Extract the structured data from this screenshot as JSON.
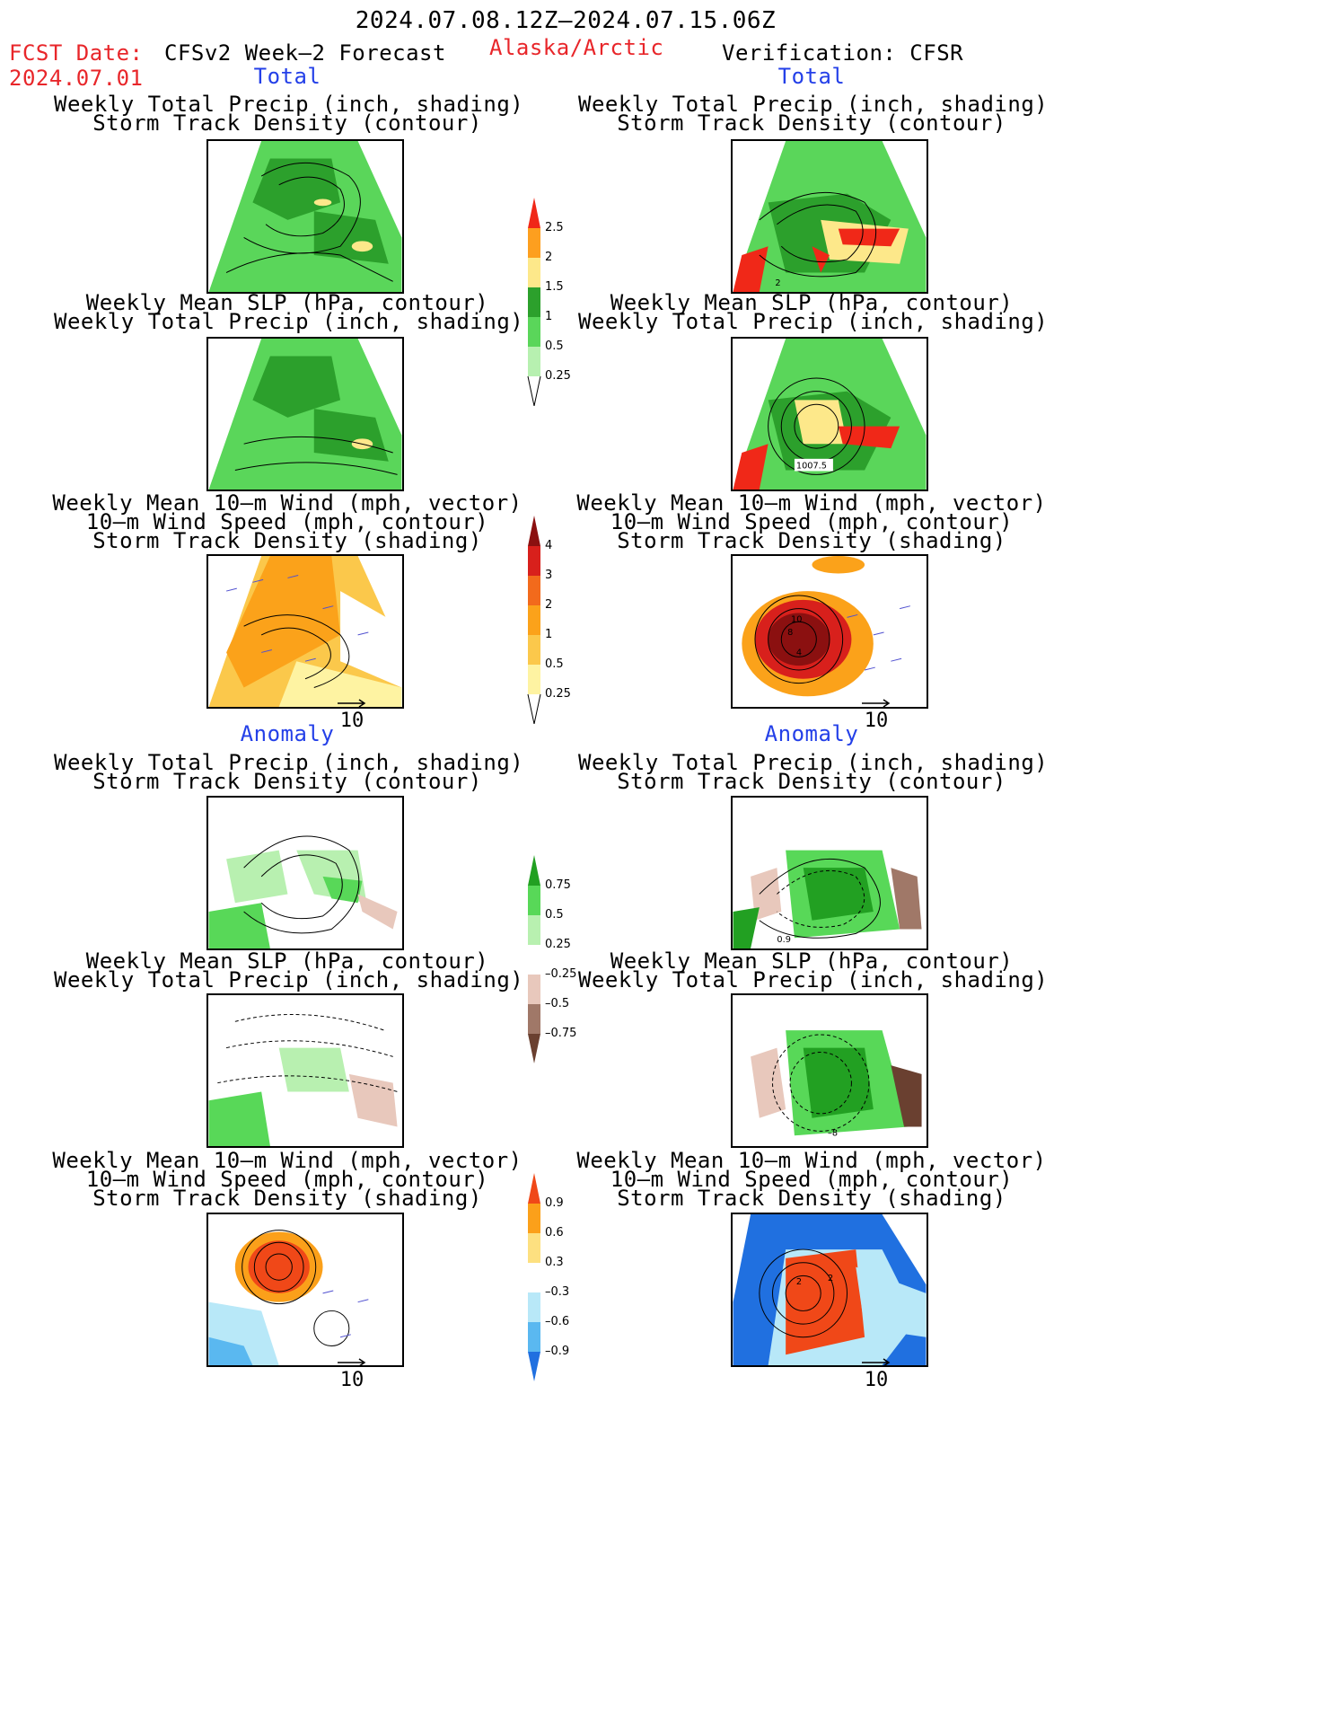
{
  "header": {
    "period": "2024.07.08.12Z–2024.07.15.06Z",
    "fcst_label": "FCST Date:",
    "fcst_date": "2024.07.01",
    "model": "CFSv2 Week–2 Forecast",
    "region": "Alaska/Arctic",
    "verification": "Verification: CFSR"
  },
  "sections": {
    "total": "Total",
    "anomaly": "Anomaly"
  },
  "titles": {
    "precip_track": [
      "Weekly Total Precip (inch, shading)",
      "Storm Track Density (contour)"
    ],
    "slp_precip": [
      "Weekly Mean SLP (hPa, contour)",
      "Weekly Total Precip (inch, shading)"
    ],
    "wind_track": [
      "Weekly Mean 10–m Wind (mph, vector)",
      "10–m Wind Speed (mph, contour)",
      "Storm Track Density (shading)"
    ]
  },
  "panel_labels": {
    "verif_precip_total": "2",
    "verif_slp_total": "1007.5",
    "verif_wind_total_a": "10",
    "verif_wind_total_b": "8",
    "verif_wind_total_c": "4",
    "verif_precip_anom": "0.9",
    "verif_slp_anom": "–8",
    "verif_wind_anom_a": "2",
    "verif_wind_anom_b": "2"
  },
  "vector_reference": "10",
  "colorbars": {
    "precip_total": [
      "2.5",
      "2",
      "1.5",
      "1",
      "0.5",
      "0.25"
    ],
    "track_total": [
      "4",
      "3",
      "2",
      "1",
      "0.5",
      "0.25"
    ],
    "precip_anom": [
      "0.75",
      "0.5",
      "0.25",
      "–0.25",
      "–0.5",
      "–0.75"
    ],
    "track_anom": [
      "0.9",
      "0.6",
      "0.3",
      "–0.3",
      "–0.6",
      "–0.9"
    ]
  },
  "colors": {
    "header_red": "#e8262a",
    "section_blue": "#2440e8",
    "precip_scale": [
      "#f02818",
      "#fd9f1f",
      "#fde88a",
      "#2ca02c",
      "#5ad65a",
      "#b7f0b0"
    ],
    "track_scale": [
      "#8b1010",
      "#d8201c",
      "#f26a1c",
      "#fba21a",
      "#fbc84b",
      "#fef3a2"
    ],
    "anom_precip_scale": [
      "#22a022",
      "#58d858",
      "#b8f0b0",
      "#e8c8bc",
      "#a07868",
      "#6a4030"
    ],
    "anom_track_scale": [
      "#f04818",
      "#fba01a",
      "#fde080",
      "#b8e8f8",
      "#5ab8f0",
      "#2070e0"
    ]
  }
}
